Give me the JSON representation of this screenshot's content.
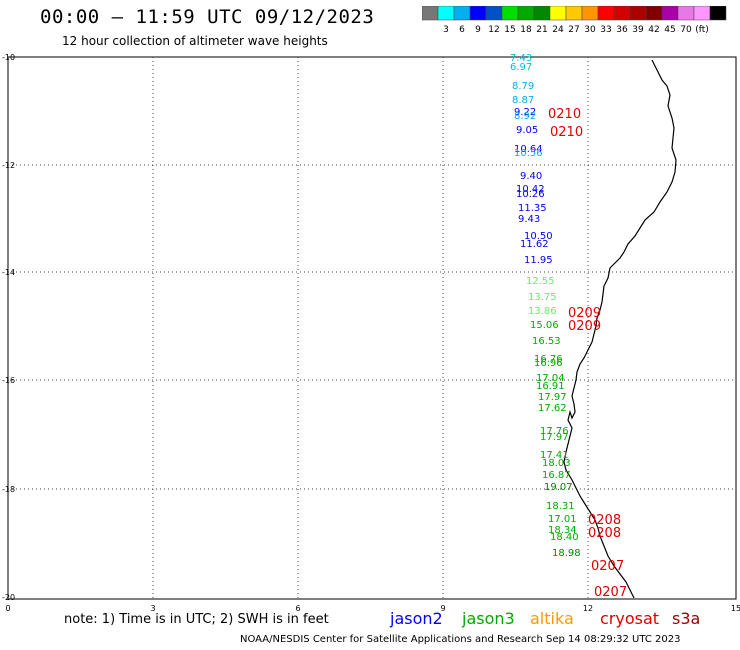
{
  "header": {
    "title": "00:00 – 11:59 UTC 09/12/2023",
    "subtitle": "12 hour collection of altimeter wave heights"
  },
  "colorbar": {
    "colors": [
      "#777777",
      "#00ffff",
      "#00b0f0",
      "#0000ff",
      "#0050c8",
      "#00e000",
      "#00aa00",
      "#008800",
      "#ffff00",
      "#ffc800",
      "#ff9600",
      "#ff0000",
      "#d40000",
      "#aa0000",
      "#800000",
      "#aa00aa",
      "#e878e8",
      "#ff96ff",
      "#000000"
    ],
    "labels": [
      "3",
      "6",
      "9",
      "12",
      "15",
      "18",
      "21",
      "24",
      "27",
      "30",
      "33",
      "36",
      "39",
      "42",
      "45",
      "70",
      "(ft)"
    ]
  },
  "axes": {
    "y_ticks": [
      "-10",
      "-12",
      "-14",
      "-16",
      "-18",
      "-20"
    ],
    "x_ticks": [
      "0",
      "3",
      "6",
      "9",
      "12",
      "15"
    ]
  },
  "measurements": [
    {
      "text": "7.43",
      "color": "#00c0e0"
    },
    {
      "text": "6.97",
      "color": "#00c0e0"
    },
    {
      "text": "8.79",
      "color": "#00b0f0"
    },
    {
      "text": "8.87",
      "color": "#00b0f0"
    },
    {
      "text": "9.22",
      "color": "#0000ff"
    },
    {
      "text": "8.92",
      "color": "#00b0f0"
    },
    {
      "text": "9.05",
      "color": "#0000ff"
    },
    {
      "text": "10.64",
      "color": "#0000ff"
    },
    {
      "text": "10.56",
      "color": "#00b0f0"
    },
    {
      "text": "9.40",
      "color": "#0000ff"
    },
    {
      "text": "10.42",
      "color": "#0000ff"
    },
    {
      "text": "10.26",
      "color": "#0000ff"
    },
    {
      "text": "11.35",
      "color": "#0000ff"
    },
    {
      "text": "9.43",
      "color": "#0000ff"
    },
    {
      "text": "10.50",
      "color": "#0000ff"
    },
    {
      "text": "11.62",
      "color": "#0000ff"
    },
    {
      "text": "11.95",
      "color": "#0000ff"
    },
    {
      "text": "12.55",
      "color": "#66ee66"
    },
    {
      "text": "13.75",
      "color": "#66ee66"
    },
    {
      "text": "13.86",
      "color": "#66ee66"
    },
    {
      "text": "15.06",
      "color": "#00aa00"
    },
    {
      "text": "16.53",
      "color": "#00aa00"
    },
    {
      "text": "16.76",
      "color": "#00aa00"
    },
    {
      "text": "16.96",
      "color": "#00aa00"
    },
    {
      "text": "17.04",
      "color": "#00aa00"
    },
    {
      "text": "16.91",
      "color": "#00aa00"
    },
    {
      "text": "17.97",
      "color": "#00aa00"
    },
    {
      "text": "17.62",
      "color": "#00aa00"
    },
    {
      "text": "17.76",
      "color": "#00aa00"
    },
    {
      "text": "17.97",
      "color": "#00aa00"
    },
    {
      "text": "17.41",
      "color": "#00aa00"
    },
    {
      "text": "18.03",
      "color": "#00aa00"
    },
    {
      "text": "16.87",
      "color": "#00aa00"
    },
    {
      "text": "19.07",
      "color": "#008800"
    },
    {
      "text": "18.31",
      "color": "#00aa00"
    },
    {
      "text": "17.01",
      "color": "#00aa00"
    },
    {
      "text": "18.34",
      "color": "#00aa00"
    },
    {
      "text": "18.40",
      "color": "#00aa00"
    },
    {
      "text": "18.98",
      "color": "#008800"
    }
  ],
  "time_labels": [
    {
      "text": "0210",
      "color": "#dd0000"
    },
    {
      "text": "0210",
      "color": "#dd0000"
    },
    {
      "text": "0209",
      "color": "#dd0000"
    },
    {
      "text": "0209",
      "color": "#dd0000"
    },
    {
      "text": "0208",
      "color": "#dd0000"
    },
    {
      "text": "0208",
      "color": "#dd0000"
    },
    {
      "text": "0207",
      "color": "#dd0000"
    },
    {
      "text": "0207",
      "color": "#dd0000"
    }
  ],
  "footer": {
    "note": "note: 1) Time is in UTC; 2) SWH is in feet",
    "legend": [
      {
        "text": "jason2",
        "color": "#0000ff"
      },
      {
        "text": "jason3",
        "color": "#00aa00"
      },
      {
        "text": "altika",
        "color": "#ff9900"
      },
      {
        "text": "cryosat",
        "color": "#dd0000"
      },
      {
        "text": "s3a",
        "color": "#990000"
      }
    ],
    "credit": "NOAA/NESDIS Center for Satellite Applications and Research    Sep 14 08:29:32 UTC 2023"
  }
}
